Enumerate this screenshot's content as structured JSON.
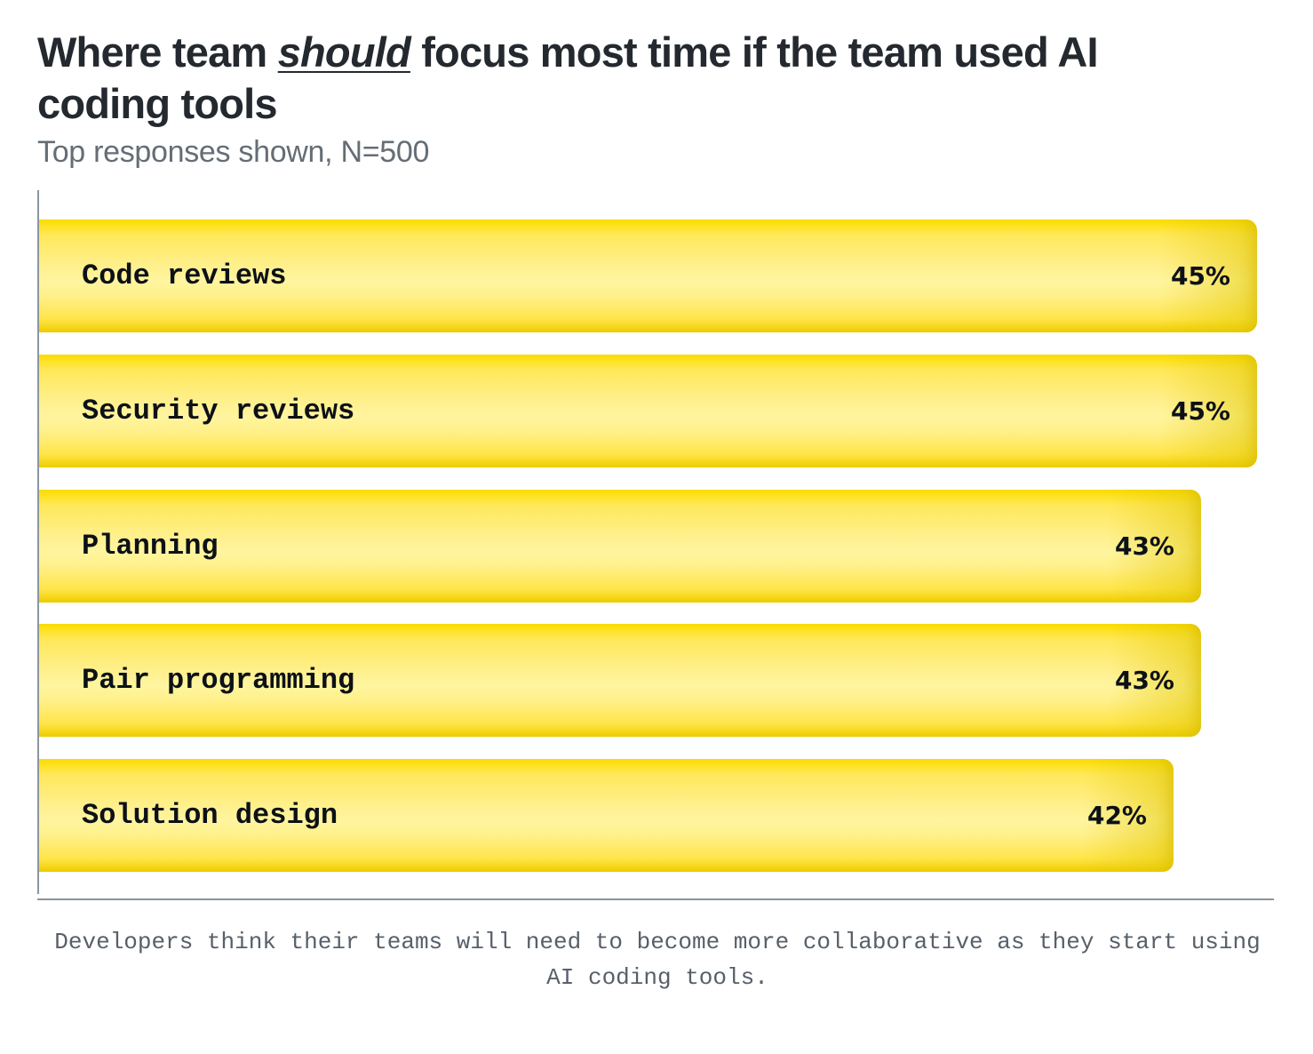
{
  "title": {
    "before": "Where team ",
    "emphasis": "should",
    "after": " focus most time if the team used AI coding tools"
  },
  "subtitle": "Top responses shown, N=500",
  "caption": "Developers think their teams will need to become more collaborative as they start using AI coding tools.",
  "colors": {
    "bar": "#ffe100",
    "bar_highlight": "#fff59f",
    "axis": "#8c959f",
    "text": "#0d1117"
  },
  "chart_data": {
    "type": "bar",
    "orientation": "horizontal",
    "title": "Where team should focus most time if the team used AI coding tools",
    "subtitle": "Top responses shown, N=500",
    "categories": [
      "Code reviews",
      "Security reviews",
      "Planning",
      "Pair programming",
      "Solution design"
    ],
    "values": [
      45,
      45,
      43,
      43,
      42
    ],
    "value_labels": [
      "45%",
      "45%",
      "43%",
      "43%",
      "42%"
    ],
    "unit": "%",
    "xlim": [
      0,
      45
    ],
    "grid": false,
    "legend": "none"
  }
}
